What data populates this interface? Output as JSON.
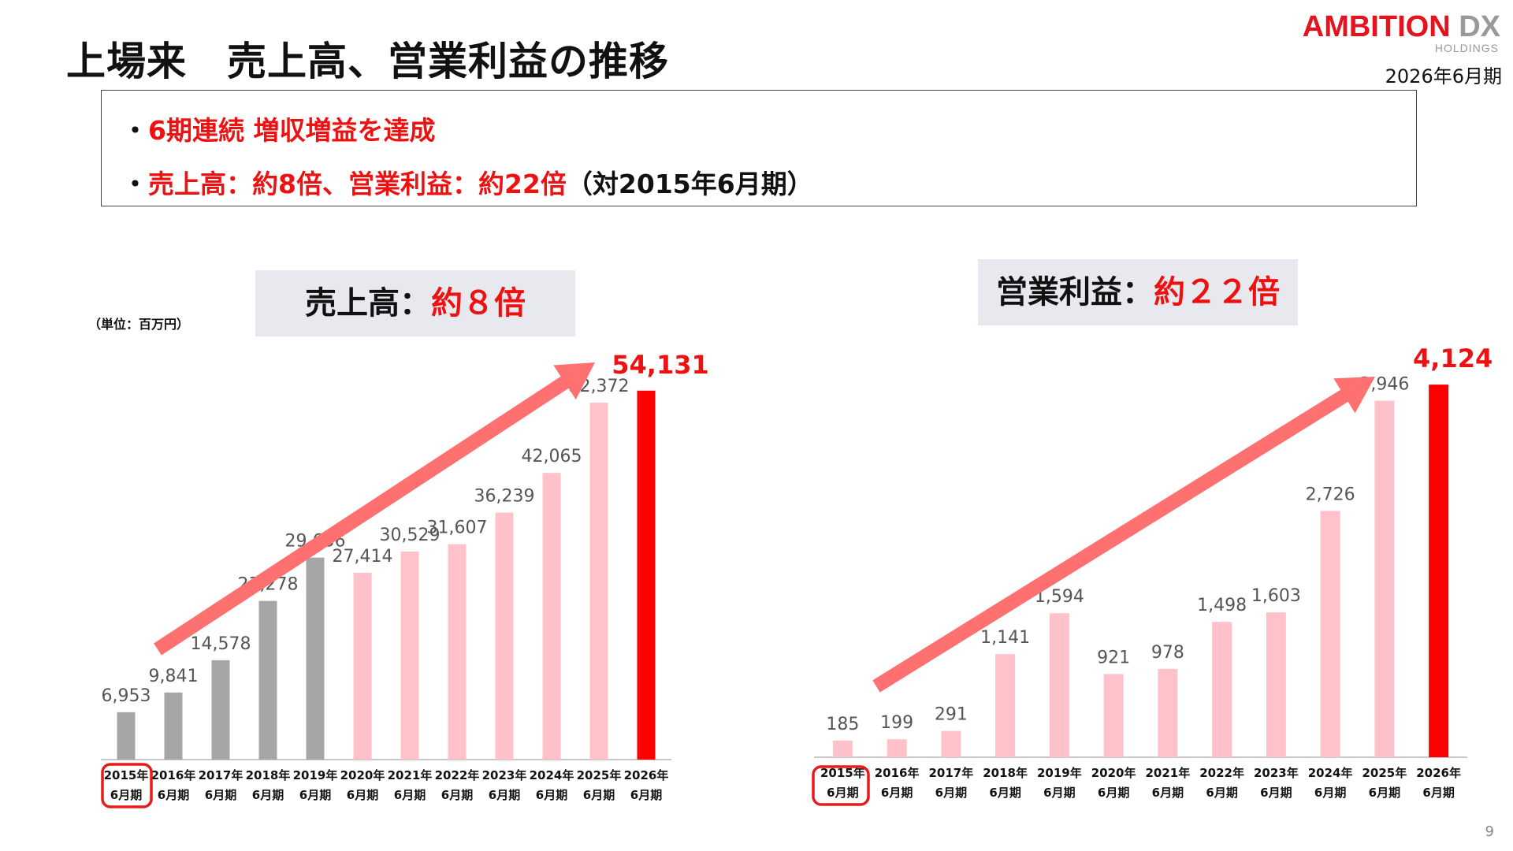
{
  "page": {
    "title": "上場来　売上高、営業利益の推移",
    "logo_main_1": "AMBITION",
    "logo_main_2": " DX",
    "logo_sub": "HOLDINGS",
    "period": "2026年6月期",
    "summary": {
      "line1_bullet": "・",
      "line1_red": "6期連続 増収増益を達成",
      "line2_bullet": "・",
      "line2_red": "売上高：約8倍、営業利益：約22倍",
      "line2_black": "（対2015年6月期）"
    },
    "unit": "（単位：百万円）",
    "page_number": "9"
  },
  "colors": {
    "actual": "#a6a6a6",
    "pink": "#ffc2cb",
    "highlight": "#ff0000",
    "arrow": "#ff7070",
    "circle": "#e81a1a"
  },
  "chart_data": [
    {
      "type": "bar",
      "badge_black": "売上高：",
      "badge_red": "約８倍",
      "categories": [
        "2015年\n6月期",
        "2016年\n6月期",
        "2017年\n6月期",
        "2018年\n6月期",
        "2019年\n6月期",
        "2020年\n6月期",
        "2021年\n6月期",
        "2022年\n6月期",
        "2023年\n6月期",
        "2024年\n6月期",
        "2025年\n6月期",
        "2026年\n6月期"
      ],
      "values": [
        6953,
        9841,
        14578,
        23278,
        29636,
        27414,
        30529,
        31607,
        36239,
        42065,
        52372,
        54131
      ],
      "labels": [
        "6,953",
        "9,841",
        "14,578",
        "23,278",
        "29,636",
        "27,414",
        "30,529",
        "31,607",
        "36,239",
        "42,065",
        "52,372",
        "54,131"
      ],
      "bar_colors": [
        "actual",
        "actual",
        "actual",
        "actual",
        "actual",
        "pink",
        "pink",
        "pink",
        "pink",
        "pink",
        "pink",
        "highlight"
      ],
      "ylim": [
        0,
        60000
      ]
    },
    {
      "type": "bar",
      "badge_black": "営業利益：",
      "badge_red": "約２２倍",
      "categories": [
        "2015年\n6月期",
        "2016年\n6月期",
        "2017年\n6月期",
        "2018年\n6月期",
        "2019年\n6月期",
        "2020年\n6月期",
        "2021年\n6月期",
        "2022年\n6月期",
        "2023年\n6月期",
        "2024年\n6月期",
        "2025年\n6月期",
        "2026年\n6月期"
      ],
      "values": [
        185,
        199,
        291,
        1141,
        1594,
        921,
        978,
        1498,
        1603,
        2726,
        3946,
        4124
      ],
      "labels": [
        "185",
        "199",
        "291",
        "1,141",
        "1,594",
        "921",
        "978",
        "1,498",
        "1,603",
        "2,726",
        "3,946",
        "4,124"
      ],
      "bar_colors": [
        "pink",
        "pink",
        "pink",
        "pink",
        "pink",
        "pink",
        "pink",
        "pink",
        "pink",
        "pink",
        "pink",
        "highlight"
      ],
      "ylim": [
        0,
        4500
      ]
    }
  ]
}
